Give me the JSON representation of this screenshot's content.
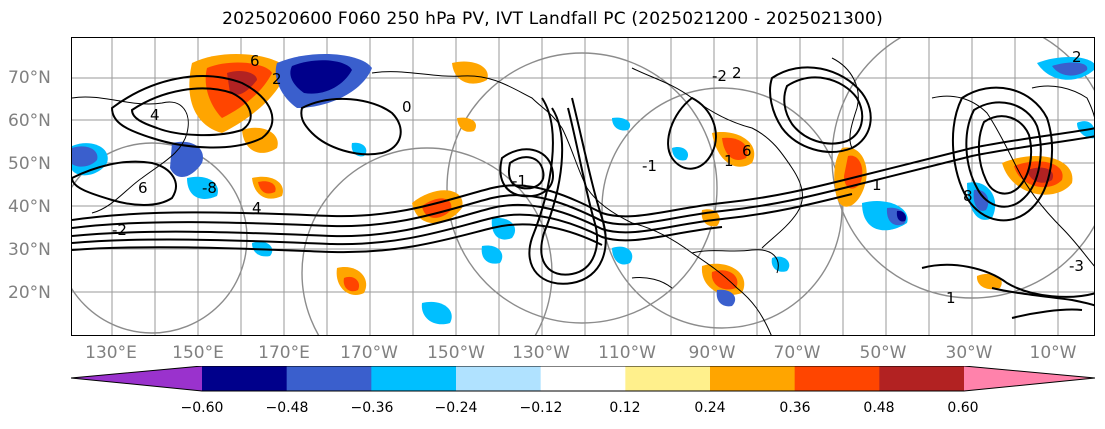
{
  "title": "2025020600 F060 250 hPa PV, IVT Landfall PC (2025021200 - 2025021300)",
  "latitude_labels": [
    "70°N",
    "60°N",
    "50°N",
    "40°N",
    "30°N",
    "20°N"
  ],
  "longitude_labels": [
    "130°E",
    "150°E",
    "170°E",
    "170°W",
    "150°W",
    "130°W",
    "110°W",
    "90°W",
    "70°W",
    "50°W",
    "30°W",
    "10°W"
  ],
  "colorbar": {
    "ticks": [
      "−0.60",
      "−0.48",
      "−0.36",
      "−0.24",
      "−0.12",
      "0.12",
      "0.24",
      "0.36",
      "0.48",
      "0.60"
    ],
    "colors": [
      "#9a32cd",
      "#00008b",
      "#3a5fcd",
      "#00bfff",
      "#b0e2ff",
      "#ffffff",
      "#fff08c",
      "#ffa500",
      "#ff4500",
      "#b22222",
      "#ff82ab"
    ]
  },
  "contour_labels": [
    "6",
    "4",
    "2",
    "0",
    "-1",
    "-2",
    "1",
    "6",
    "-1",
    "-8",
    "4",
    "2",
    "1",
    "-3",
    "-2",
    "2",
    "6",
    "1",
    "8"
  ]
}
